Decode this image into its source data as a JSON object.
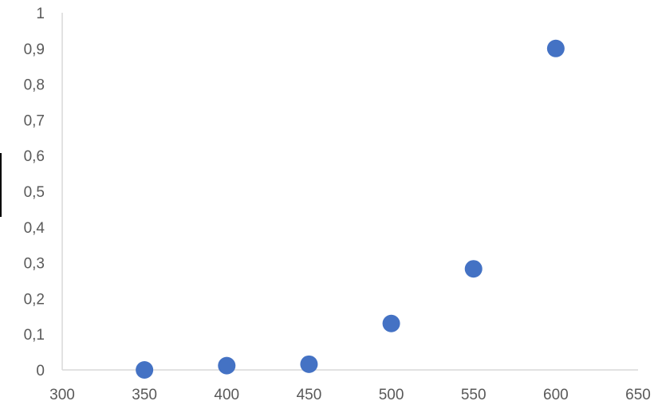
{
  "chart_data": {
    "type": "scatter",
    "title": "",
    "xlabel": "",
    "ylabel": "",
    "xlim": [
      300,
      650
    ],
    "ylim": [
      0,
      1
    ],
    "x_ticks": [
      "300",
      "350",
      "400",
      "450",
      "500",
      "550",
      "600",
      "650"
    ],
    "y_ticks": [
      "0",
      "0,1",
      "0,2",
      "0,3",
      "0,4",
      "0,5",
      "0,6",
      "0,7",
      "0,8",
      "0,9",
      "1"
    ],
    "grid": false,
    "legend": "none",
    "color": "#4472c4",
    "series": [
      {
        "x": [
          350,
          400,
          450,
          500,
          550,
          600
        ],
        "y": [
          0.0,
          0.012,
          0.016,
          0.13,
          0.283,
          0.9
        ]
      }
    ]
  }
}
